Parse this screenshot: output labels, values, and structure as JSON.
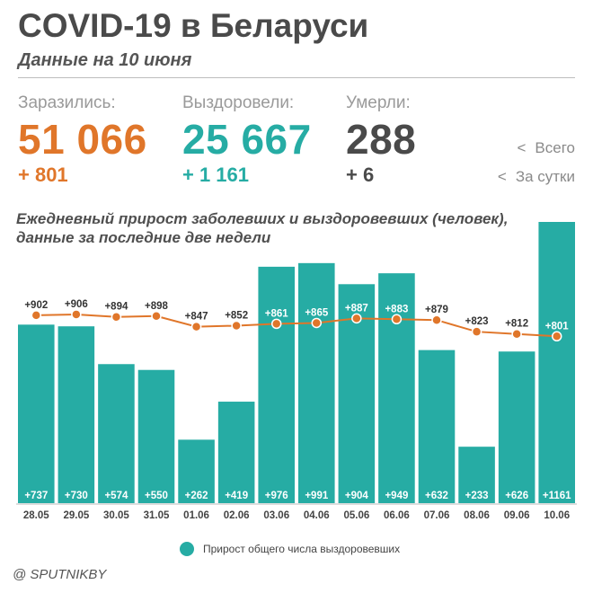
{
  "header": {
    "title": "COVID-19 в Беларуси",
    "subtitle": "Данные на 10 июня"
  },
  "stats": {
    "infected": {
      "label": "Заразились:",
      "value": "51 066",
      "delta": "+ 801"
    },
    "recovered": {
      "label": "Выздоровели:",
      "value": "25 667",
      "delta": "+ 1 161"
    },
    "died": {
      "label": "Умерли:",
      "value": "288",
      "delta": "+ 6"
    }
  },
  "legend_right": {
    "arrow": "<",
    "total": "Всего",
    "daily": "За сутки"
  },
  "colors": {
    "orange": "#e0762a",
    "teal": "#26aca4",
    "dark": "#4a4a4a"
  },
  "chart_data": {
    "type": "bar",
    "title": "Ежедневный прирост заболевших и выздоровевших (человек), данные за последние две недели",
    "categories": [
      "28.05",
      "29.05",
      "30.05",
      "31.05",
      "01.06",
      "02.06",
      "03.06",
      "04.06",
      "05.06",
      "06.06",
      "07.06",
      "08.06",
      "09.06",
      "10.06"
    ],
    "series": [
      {
        "name": "Прирост общего числа выздоровевших",
        "type": "bar",
        "values": [
          737,
          730,
          574,
          550,
          262,
          419,
          976,
          991,
          904,
          949,
          632,
          233,
          626,
          1161
        ],
        "labels": [
          "+737",
          "+730",
          "+574",
          "+550",
          "+262",
          "+419",
          "+976",
          "+991",
          "+904",
          "+949",
          "+632",
          "+233",
          "+626",
          "+1161"
        ]
      },
      {
        "name": "Прирост заболевших",
        "type": "line",
        "values": [
          902,
          906,
          894,
          898,
          847,
          852,
          861,
          865,
          887,
          883,
          879,
          823,
          812,
          801
        ],
        "labels": [
          "+902",
          "+906",
          "+894",
          "+898",
          "+847",
          "+852",
          "+861",
          "+865",
          "+887",
          "+883",
          "+879",
          "+823",
          "+812",
          "+801"
        ]
      }
    ],
    "bar_ylim": [
      0,
      1161
    ],
    "line_ylim": [
      0,
      1350
    ]
  },
  "legend_bottom": {
    "label": "Прирост общего числа выздоровевших"
  },
  "source": "@ SPUTNIKBY"
}
